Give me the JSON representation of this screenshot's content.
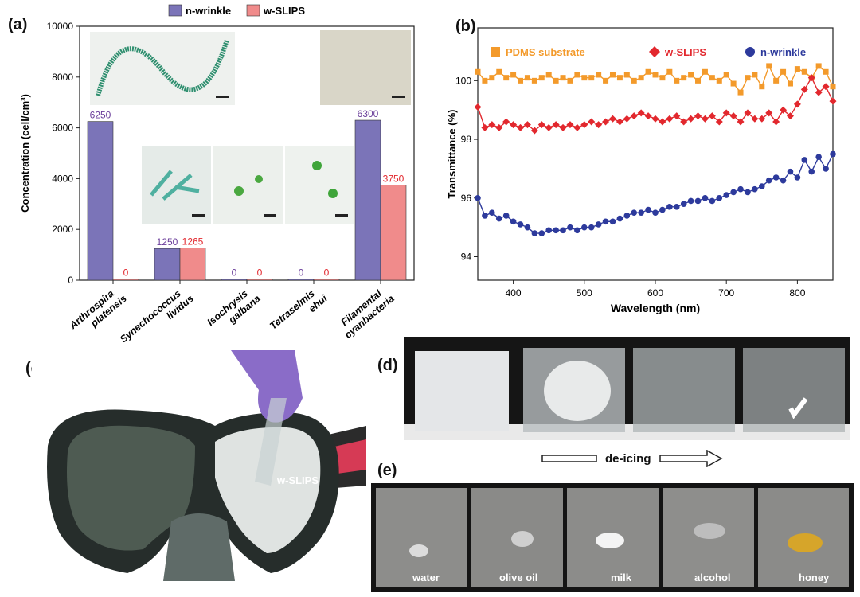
{
  "panels": {
    "a": "(a)",
    "b": "(b)",
    "c": "(c)",
    "d": "(d)",
    "e": "(e)"
  },
  "colors": {
    "n_wrinkle": "#7b74b8",
    "w_slips": "#f08b8b",
    "pdms": "#f39a2b",
    "wslips_line": "#e2282e",
    "nwrinkle_line": "#2d3a9c",
    "val_n": "#6a3d9a",
    "val_w": "#e2282e"
  },
  "chart_data": [
    {
      "type": "bar",
      "categories": [
        [
          "Arthrospira",
          "platensis"
        ],
        [
          "Synechococcus",
          "lividus"
        ],
        [
          "Isochrysis",
          "galbana"
        ],
        [
          "Tetraselmis",
          "ehui"
        ],
        [
          "Filamental",
          "cyanbacteria"
        ]
      ],
      "series": [
        {
          "name": "n-wrinkle",
          "values": [
            6250,
            1250,
            0,
            0,
            6300
          ],
          "labels": [
            "6250",
            "1250",
            "0",
            "0",
            "6300"
          ]
        },
        {
          "name": "w-SLIPS",
          "values": [
            0,
            1265,
            0,
            0,
            3750
          ],
          "labels": [
            "0",
            "1265",
            "0",
            "0",
            "3750"
          ]
        }
      ],
      "ylabel": "Concentration (cell/cm³)",
      "ylim": [
        0,
        10000
      ],
      "yticks": [
        "0",
        "2000",
        "4000",
        "6000",
        "8000",
        "10000"
      ],
      "legend_position": "top"
    },
    {
      "type": "line",
      "xlabel": "Wavelength (nm)",
      "ylabel": "Transmittance (%)",
      "xlim": [
        350,
        850
      ],
      "ylim": [
        93.2,
        101.8
      ],
      "xticks": [
        "400",
        "500",
        "600",
        "700",
        "800"
      ],
      "yticks": [
        "94",
        "96",
        "98",
        "100"
      ],
      "legend_position": "top",
      "series": [
        {
          "name": "PDMS substrate",
          "x": [
            350,
            360,
            370,
            380,
            390,
            400,
            410,
            420,
            430,
            440,
            450,
            460,
            470,
            480,
            490,
            500,
            510,
            520,
            530,
            540,
            550,
            560,
            570,
            580,
            590,
            600,
            610,
            620,
            630,
            640,
            650,
            660,
            670,
            680,
            690,
            700,
            710,
            720,
            730,
            740,
            750,
            760,
            770,
            780,
            790,
            800,
            810,
            820,
            830,
            840,
            850
          ],
          "y": [
            100.3,
            100.0,
            100.1,
            100.3,
            100.1,
            100.2,
            100.0,
            100.1,
            100.0,
            100.1,
            100.2,
            100.0,
            100.1,
            100.0,
            100.2,
            100.1,
            100.1,
            100.2,
            100.0,
            100.2,
            100.1,
            100.2,
            100.0,
            100.1,
            100.3,
            100.2,
            100.1,
            100.3,
            100.0,
            100.1,
            100.2,
            100.0,
            100.3,
            100.1,
            100.0,
            100.2,
            99.9,
            99.6,
            100.1,
            100.2,
            99.8,
            100.5,
            100.0,
            100.3,
            99.9,
            100.4,
            100.3,
            100.1,
            100.5,
            100.3,
            99.8
          ]
        },
        {
          "name": "w-SLIPS",
          "x": [
            350,
            360,
            370,
            380,
            390,
            400,
            410,
            420,
            430,
            440,
            450,
            460,
            470,
            480,
            490,
            500,
            510,
            520,
            530,
            540,
            550,
            560,
            570,
            580,
            590,
            600,
            610,
            620,
            630,
            640,
            650,
            660,
            670,
            680,
            690,
            700,
            710,
            720,
            730,
            740,
            750,
            760,
            770,
            780,
            790,
            800,
            810,
            820,
            830,
            840,
            850
          ],
          "y": [
            99.1,
            98.4,
            98.5,
            98.4,
            98.6,
            98.5,
            98.4,
            98.5,
            98.3,
            98.5,
            98.4,
            98.5,
            98.4,
            98.5,
            98.4,
            98.5,
            98.6,
            98.5,
            98.6,
            98.7,
            98.6,
            98.7,
            98.8,
            98.9,
            98.8,
            98.7,
            98.6,
            98.7,
            98.8,
            98.6,
            98.7,
            98.8,
            98.7,
            98.8,
            98.6,
            98.9,
            98.8,
            98.6,
            98.9,
            98.7,
            98.7,
            98.9,
            98.6,
            99.0,
            98.8,
            99.2,
            99.7,
            100.1,
            99.6,
            99.8,
            99.3
          ]
        },
        {
          "name": "n-wrinkle",
          "x": [
            350,
            360,
            370,
            380,
            390,
            400,
            410,
            420,
            430,
            440,
            450,
            460,
            470,
            480,
            490,
            500,
            510,
            520,
            530,
            540,
            550,
            560,
            570,
            580,
            590,
            600,
            610,
            620,
            630,
            640,
            650,
            660,
            670,
            680,
            690,
            700,
            710,
            720,
            730,
            740,
            750,
            760,
            770,
            780,
            790,
            800,
            810,
            820,
            830,
            840,
            850
          ],
          "y": [
            96.0,
            95.4,
            95.5,
            95.3,
            95.4,
            95.2,
            95.1,
            95.0,
            94.8,
            94.8,
            94.9,
            94.9,
            94.9,
            95.0,
            94.9,
            95.0,
            95.0,
            95.1,
            95.2,
            95.2,
            95.3,
            95.4,
            95.5,
            95.5,
            95.6,
            95.5,
            95.6,
            95.7,
            95.7,
            95.8,
            95.9,
            95.9,
            96.0,
            95.9,
            96.0,
            96.1,
            96.2,
            96.3,
            96.2,
            96.3,
            96.4,
            96.6,
            96.7,
            96.6,
            96.9,
            96.7,
            97.3,
            96.9,
            97.4,
            97.0,
            97.5
          ]
        }
      ]
    }
  ],
  "photos": {
    "c_label": "w-SLIPS",
    "deicing": "de-icing",
    "e_labels": [
      "water",
      "olive oil",
      "milk",
      "alcohol",
      "honey"
    ]
  }
}
